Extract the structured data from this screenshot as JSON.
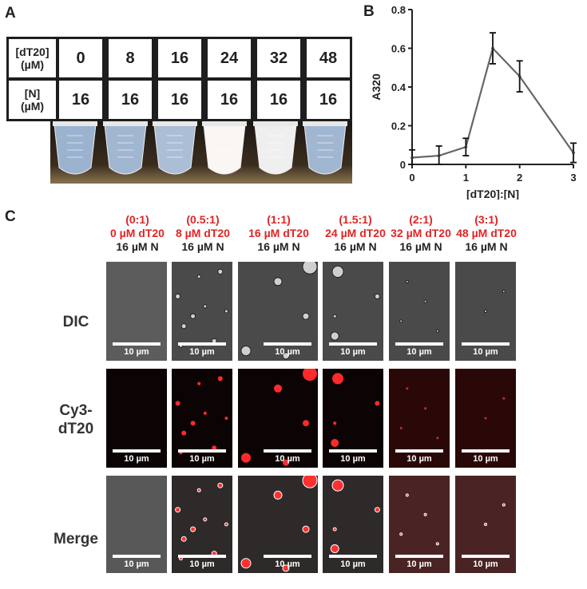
{
  "panelA": {
    "letter": "A",
    "row1_header": [
      "[dT20]",
      "(µM)"
    ],
    "row2_header": [
      "[N]",
      "(µM)"
    ],
    "dT20_values": [
      "0",
      "8",
      "16",
      "24",
      "32",
      "48"
    ],
    "N_values": [
      "16",
      "16",
      "16",
      "16",
      "16",
      "16"
    ],
    "tube_turbidity": [
      0.05,
      0.1,
      0.2,
      0.95,
      0.85,
      0.1
    ]
  },
  "panelB": {
    "letter": "B"
  },
  "chart_data": {
    "type": "line",
    "xlabel": "[dT20]:[N]",
    "ylabel": "A320",
    "xlim": [
      0,
      3
    ],
    "ylim": [
      0,
      0.8
    ],
    "xticks": [
      "0",
      "1",
      "2",
      "3"
    ],
    "yticks": [
      "0",
      "0.2",
      "0.4",
      "0.6",
      "0.8"
    ],
    "x": [
      0,
      0.5,
      1,
      1.5,
      2,
      3
    ],
    "values": [
      0.035,
      0.045,
      0.09,
      0.6,
      0.455,
      0.06
    ],
    "errors": [
      0.04,
      0.05,
      0.045,
      0.08,
      0.08,
      0.05
    ],
    "grid": false
  },
  "panelC": {
    "letter": "C",
    "conditions": [
      {
        "ratio": "(0:1)",
        "dT20": "0 µM dT20",
        "N": "16 µM N"
      },
      {
        "ratio": "(0.5:1)",
        "dT20": "8 µM dT20",
        "N": "16 µM N"
      },
      {
        "ratio": "(1:1)",
        "dT20": "16 µM dT20",
        "N": "16 µM N"
      },
      {
        "ratio": "(1.5:1)",
        "dT20": "24 µM dT20",
        "N": "16 µM N"
      },
      {
        "ratio": "(2:1)",
        "dT20": "32 µM dT20",
        "N": "16 µM N"
      },
      {
        "ratio": "(3:1)",
        "dT20": "48 µM dT20",
        "N": "16 µM N"
      }
    ],
    "rows": [
      "DIC",
      "Cy3-\ndT20",
      "Merge"
    ],
    "scale_label": "10 µm"
  }
}
